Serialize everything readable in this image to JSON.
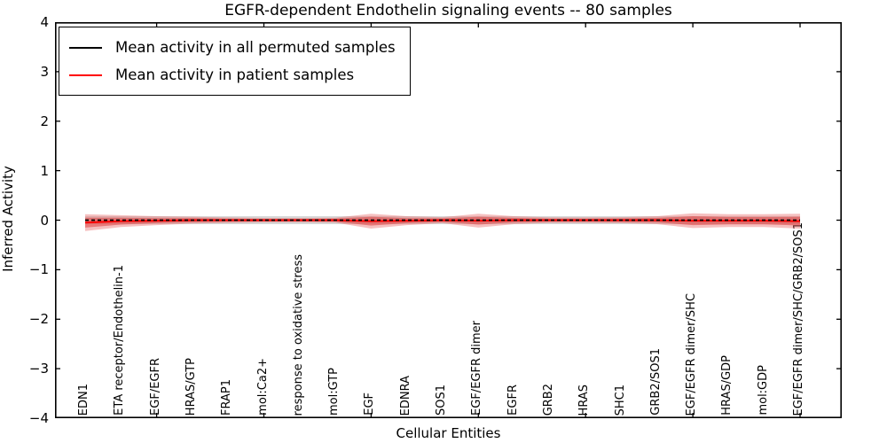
{
  "figure": {
    "title": "EGFR-dependent Endothelin signaling events -- 80 samples"
  },
  "chart_data": {
    "type": "line",
    "title": "EGFR-dependent Endothelin signaling events -- 80 samples",
    "xlabel": "Cellular Entities",
    "ylabel": "Inferred Activity",
    "ylim": [
      -4,
      4
    ],
    "grid": false,
    "ytick_values": [
      4,
      3,
      2,
      1,
      0,
      -1,
      -2,
      -3,
      -4
    ],
    "ytick_labels": [
      "4",
      "3",
      "2",
      "1",
      "0",
      "−1",
      "−2",
      "−3",
      "−4"
    ],
    "xtick_positions": [
      2,
      5,
      8,
      11,
      14,
      17,
      20
    ],
    "categories": [
      "EDN1",
      "ETA receptor/Endothelin-1",
      "EGF/EGFR",
      "HRAS/GTP",
      "FRAP1",
      "mol:Ca2+",
      "response to oxidative stress",
      "mol:GTP",
      "EGF",
      "EDNRA",
      "SOS1",
      "EGF/EGFR dimer",
      "EGFR",
      "GRB2",
      "HRAS",
      "SHC1",
      "GRB2/SOS1",
      "EGF/EGFR dimer/SHC",
      "HRAS/GDP",
      "mol:GDP",
      "EGF/EGFR dimer/SHC/GRB2/SOS1"
    ],
    "series": [
      {
        "name": "Mean activity in all permuted samples",
        "color": "#000000",
        "line_style": "dashed",
        "values": [
          0,
          0,
          0,
          0,
          0,
          0,
          0,
          0,
          0,
          0,
          0,
          0,
          0,
          0,
          0,
          0,
          0,
          0,
          0,
          0,
          0
        ]
      },
      {
        "name": "Mean activity in patient samples",
        "color": "#ff0000",
        "line_style": "solid",
        "values": [
          -0.05,
          -0.02,
          -0.01,
          0,
          0,
          0,
          0,
          0,
          -0.02,
          -0.01,
          0,
          -0.01,
          0,
          0,
          0,
          0,
          0,
          -0.01,
          -0.01,
          -0.01,
          -0.02
        ]
      }
    ],
    "bands": [
      {
        "name": "permuted-samples-std-band",
        "center": "permuted",
        "color": "#b0b0b0",
        "opacity": 0.5,
        "halfwidths": [
          0.08,
          0.08,
          0.08,
          0.08,
          0.08,
          0.08,
          0.08,
          0.08,
          0.08,
          0.08,
          0.08,
          0.08,
          0.08,
          0.08,
          0.08,
          0.08,
          0.08,
          0.08,
          0.08,
          0.08,
          0.08
        ]
      },
      {
        "name": "patient-samples-std-band-outer",
        "center": "patient",
        "color": "#e86a6a",
        "opacity": 0.42,
        "halfwidths": [
          0.17,
          0.12,
          0.09,
          0.07,
          0.055,
          0.045,
          0.045,
          0.05,
          0.15,
          0.09,
          0.06,
          0.14,
          0.08,
          0.055,
          0.055,
          0.06,
          0.08,
          0.15,
          0.13,
          0.13,
          0.15
        ]
      },
      {
        "name": "patient-samples-std-band-inner",
        "center": "patient",
        "color": "#df4040",
        "opacity": 0.55,
        "halfwidths": [
          0.1,
          0.07,
          0.05,
          0.04,
          0.03,
          0.025,
          0.025,
          0.03,
          0.09,
          0.05,
          0.035,
          0.08,
          0.045,
          0.03,
          0.03,
          0.035,
          0.045,
          0.09,
          0.075,
          0.075,
          0.09
        ]
      }
    ],
    "legend": {
      "position": "upper left",
      "entries": [
        "Mean activity in all permuted samples",
        "Mean activity in patient samples"
      ]
    }
  }
}
